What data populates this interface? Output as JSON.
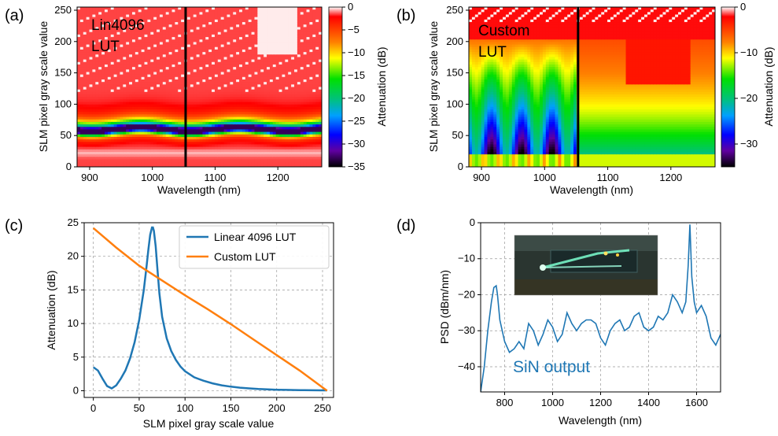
{
  "chart_data": [
    {
      "panel": "(a)",
      "type": "heatmap",
      "xlabel": "Wavelength (nm)",
      "ylabel": "SLM pixel gray scale value",
      "xlim": [
        880,
        1270
      ],
      "ylim": [
        0,
        255
      ],
      "xticks": [
        900,
        1000,
        1100,
        1200
      ],
      "yticks": [
        0,
        50,
        100,
        150,
        200,
        250
      ],
      "annotation": [
        "Lin4096",
        "LUT"
      ],
      "marker_line_x": 1053,
      "colorbar": {
        "label": "Attenuation (dB)",
        "range": [
          -35,
          0
        ],
        "ticks": [
          0,
          -5,
          -10,
          -15,
          -20,
          -25,
          -30,
          -35
        ]
      },
      "colormap": "jet (black-purple-blue-cyan-green-yellow-red-white)",
      "description_values": {
        "deep_attenuation_band_gray_value": 60,
        "secondary_band_gray_value": 25
      }
    },
    {
      "panel": "(b)",
      "type": "heatmap",
      "xlabel": "Wavelength (nm)",
      "ylabel": "SLM pixel gray scale value",
      "xlim": [
        880,
        1270
      ],
      "ylim": [
        0,
        255
      ],
      "xticks": [
        900,
        1000,
        1100,
        1200
      ],
      "yticks": [
        0,
        50,
        100,
        150,
        200,
        250
      ],
      "annotation": [
        "Custom",
        "LUT"
      ],
      "marker_line_x": 1053,
      "colorbar": {
        "label": "Attenuation (dB)",
        "range": [
          -35,
          0
        ],
        "ticks": [
          0,
          -10,
          -20,
          -30
        ]
      },
      "colormap": "jet (black-purple-blue-cyan-green-yellow-red-white)"
    },
    {
      "panel": "(c)",
      "type": "line",
      "xlabel": "SLM pixel gray scale value",
      "ylabel": "Attenuation (dB)",
      "xlim": [
        -10,
        262
      ],
      "ylim": [
        -1,
        25
      ],
      "xticks": [
        0,
        50,
        100,
        150,
        200,
        250
      ],
      "yticks": [
        0,
        5,
        10,
        15,
        20,
        25
      ],
      "grid": true,
      "legend": "top-right",
      "series": [
        {
          "name": "Linear 4096 LUT",
          "color": "#1f77b4",
          "x": [
            0,
            5,
            10,
            15,
            20,
            25,
            30,
            35,
            40,
            45,
            50,
            55,
            58,
            60,
            62,
            64,
            65,
            66,
            68,
            70,
            72,
            75,
            80,
            85,
            90,
            95,
            100,
            110,
            120,
            130,
            140,
            150,
            160,
            170,
            180,
            190,
            200,
            210,
            220,
            230,
            240,
            250,
            255
          ],
          "values": [
            3.5,
            3.0,
            1.8,
            0.7,
            0.35,
            0.8,
            1.8,
            3.0,
            4.8,
            7.2,
            10.5,
            15.0,
            18.5,
            21.0,
            23.2,
            24.3,
            24.3,
            23.8,
            21.5,
            18.0,
            14.5,
            11.0,
            7.8,
            5.9,
            4.6,
            3.6,
            2.9,
            2.0,
            1.5,
            1.1,
            0.8,
            0.6,
            0.45,
            0.35,
            0.25,
            0.2,
            0.15,
            0.12,
            0.1,
            0.08,
            0.06,
            0.05,
            0.05
          ]
        },
        {
          "name": "Custom LUT",
          "color": "#ff7f0e",
          "x": [
            0,
            25,
            50,
            75,
            100,
            125,
            150,
            175,
            200,
            225,
            250,
            255
          ],
          "values": [
            24.2,
            21.3,
            18.6,
            16.4,
            14.2,
            12.1,
            9.9,
            7.6,
            5.3,
            3.0,
            0.5,
            0.0
          ]
        }
      ]
    },
    {
      "panel": "(d)",
      "type": "line",
      "xlabel": "Wavelength (nm)",
      "ylabel": "PSD (dBm/nm)",
      "xlim": [
        700,
        1700
      ],
      "ylim": [
        -47,
        0
      ],
      "xticks": [
        800,
        1000,
        1200,
        1400,
        1600
      ],
      "yticks": [
        0,
        -10,
        -20,
        -30,
        -40
      ],
      "grid": true,
      "annotation": "SiN output",
      "inset": "photo of SiN waveguide chip emitting green light",
      "series": [
        {
          "name": "SiN output",
          "color": "#1f77b4",
          "x": [
            700,
            715,
            730,
            745,
            755,
            765,
            770,
            780,
            800,
            820,
            840,
            860,
            880,
            900,
            920,
            940,
            960,
            980,
            1000,
            1020,
            1040,
            1060,
            1080,
            1100,
            1120,
            1140,
            1160,
            1180,
            1200,
            1220,
            1240,
            1260,
            1280,
            1300,
            1320,
            1340,
            1360,
            1380,
            1400,
            1420,
            1440,
            1460,
            1480,
            1500,
            1520,
            1540,
            1555,
            1565,
            1572,
            1580,
            1590,
            1600,
            1620,
            1640,
            1660,
            1680,
            1700
          ],
          "values": [
            -47,
            -40,
            -30,
            -22,
            -18,
            -17.5,
            -20,
            -27,
            -33,
            -36,
            -35,
            -33,
            -35,
            -28,
            -30,
            -34,
            -31,
            -27,
            -29,
            -33,
            -31,
            -25,
            -28,
            -30,
            -28,
            -27,
            -27,
            -28,
            -32,
            -34,
            -30,
            -28,
            -27,
            -30,
            -29,
            -26,
            -25,
            -29,
            -30,
            -29,
            -26,
            -27,
            -25,
            -20,
            -22,
            -25,
            -22,
            -12,
            -0.5,
            -15,
            -22,
            -25,
            -23,
            -26,
            -32,
            -34,
            -31
          ]
        }
      ]
    }
  ],
  "labels": {
    "panel_a": "(a)",
    "panel_b": "(b)",
    "panel_c": "(c)",
    "panel_d": "(d)"
  }
}
